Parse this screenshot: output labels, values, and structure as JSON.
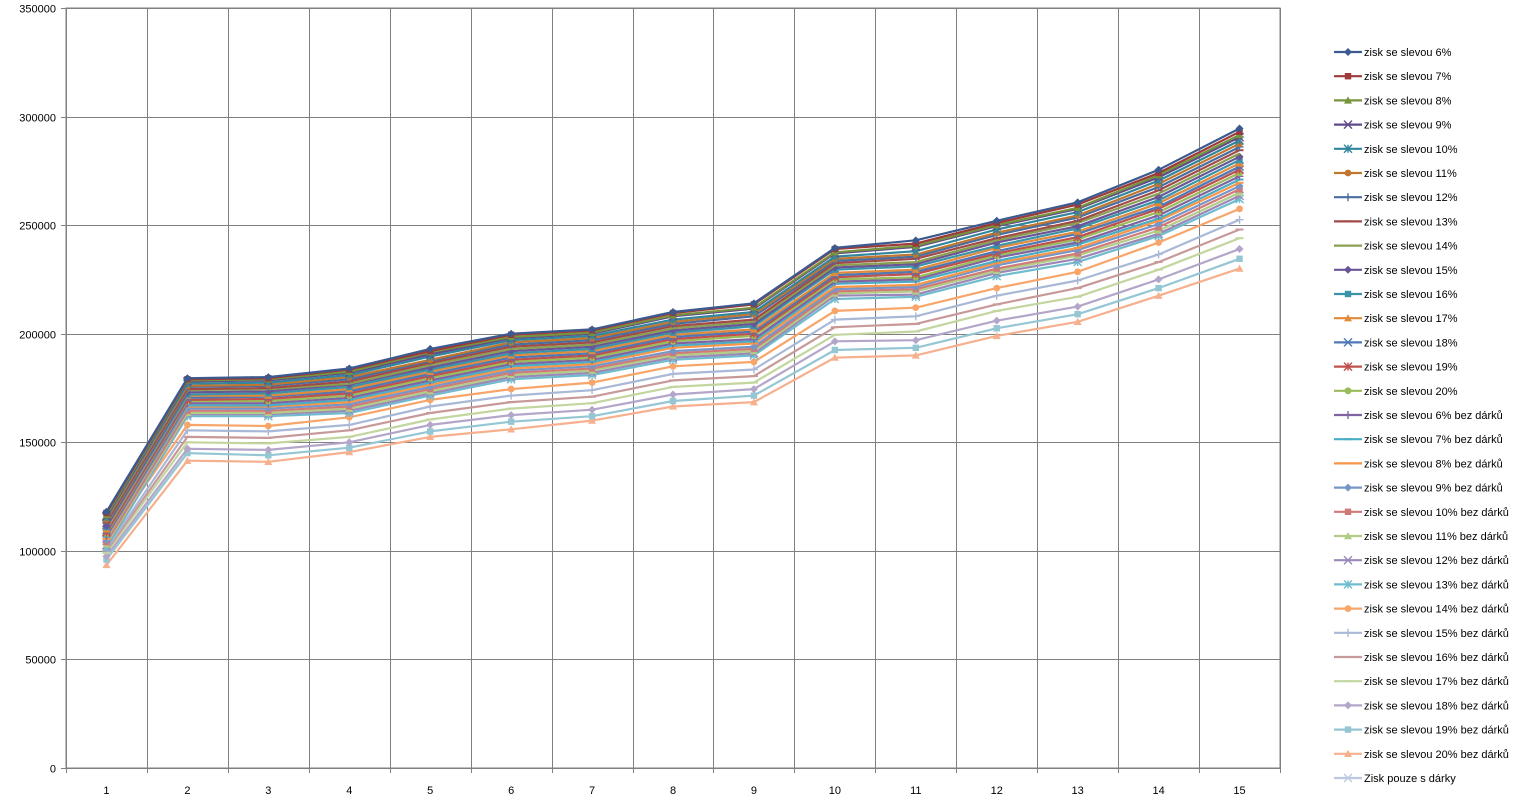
{
  "chart_data": {
    "type": "line",
    "title": "",
    "xlabel": "",
    "ylabel": "",
    "ylim": [
      0,
      350000
    ],
    "yticks": [
      0,
      50000,
      100000,
      150000,
      200000,
      250000,
      300000,
      350000
    ],
    "ytick_labels": [
      "0",
      "50000",
      "100000",
      "150000",
      "200000",
      "250000",
      "300000",
      "350000"
    ],
    "x": [
      "1",
      "2",
      "3",
      "4",
      "5",
      "6",
      "7",
      "8",
      "9",
      "10",
      "11",
      "12",
      "13",
      "14",
      "15"
    ],
    "grid": true,
    "legend_position": "right",
    "series": [
      {
        "name": "zisk se slevou 6%",
        "color": "#3b5a8f",
        "marker": "diamond",
        "values": [
          118000,
          179500,
          180000,
          184000,
          193000,
          200000,
          202000,
          210000,
          214000,
          239500,
          243000,
          252000,
          260500,
          275500,
          294500
        ]
      },
      {
        "name": "zisk se slevou 7%",
        "color": "#9c3b39",
        "marker": "square",
        "values": [
          117500,
          179000,
          179500,
          183500,
          192000,
          199500,
          201500,
          209500,
          213500,
          239000,
          241500,
          251000,
          259500,
          274000,
          293000
        ]
      },
      {
        "name": "zisk se slevou 8%",
        "color": "#77933c",
        "marker": "triangle",
        "values": [
          116500,
          178500,
          179000,
          182500,
          191500,
          198500,
          200500,
          208500,
          212000,
          237500,
          240500,
          250000,
          258000,
          273000,
          291500
        ]
      },
      {
        "name": "zisk se slevou 9%",
        "color": "#5f4b8b",
        "marker": "x",
        "values": [
          116000,
          178000,
          178500,
          182000,
          190500,
          198000,
          200000,
          208000,
          211500,
          237000,
          240000,
          249500,
          257500,
          272000,
          290500
        ]
      },
      {
        "name": "zisk se slevou 10%",
        "color": "#31859c",
        "marker": "star",
        "values": [
          115500,
          177000,
          177500,
          181000,
          189500,
          197000,
          199000,
          206500,
          210000,
          235500,
          238000,
          248000,
          256000,
          270500,
          289000
        ]
      },
      {
        "name": "zisk se slevou 11%",
        "color": "#c0762f",
        "marker": "circle",
        "values": [
          114500,
          176000,
          176500,
          180000,
          188000,
          196000,
          198000,
          205500,
          209000,
          234500,
          236500,
          246500,
          254500,
          269000,
          287500
        ]
      },
      {
        "name": "zisk se slevou 12%",
        "color": "#4a6ea0",
        "marker": "plus",
        "values": [
          114000,
          175500,
          176000,
          179000,
          187500,
          195000,
          197000,
          204500,
          208000,
          233500,
          235500,
          245500,
          253500,
          267500,
          286000
        ]
      },
      {
        "name": "zisk se slevou 13%",
        "color": "#a24a48",
        "marker": "dash",
        "values": [
          113000,
          174500,
          175000,
          178000,
          186500,
          194000,
          196000,
          203500,
          206500,
          232500,
          234500,
          244000,
          252000,
          266000,
          284500
        ]
      },
      {
        "name": "zisk se slevou 14%",
        "color": "#8aa050",
        "marker": "none",
        "values": [
          112500,
          174000,
          174500,
          177000,
          185500,
          193000,
          195000,
          202500,
          205500,
          231500,
          233000,
          243000,
          251000,
          264500,
          283000
        ]
      },
      {
        "name": "zisk se slevou 15%",
        "color": "#6a5596",
        "marker": "diamond",
        "values": [
          111500,
          173000,
          173500,
          176500,
          184500,
          192000,
          194000,
          201500,
          204500,
          230500,
          232000,
          242000,
          249500,
          263000,
          281500
        ]
      },
      {
        "name": "zisk se slevou 16%",
        "color": "#3a93a8",
        "marker": "square",
        "values": [
          111000,
          172000,
          172500,
          175500,
          183500,
          191000,
          193000,
          200500,
          203500,
          229500,
          231000,
          240500,
          248500,
          261500,
          280000
        ]
      },
      {
        "name": "zisk se slevou 17%",
        "color": "#e08a3c",
        "marker": "triangle",
        "values": [
          110000,
          171500,
          171500,
          174500,
          182500,
          190000,
          192000,
          199500,
          202000,
          228000,
          229500,
          239500,
          247000,
          260000,
          278500
        ]
      },
      {
        "name": "zisk se slevou 18%",
        "color": "#4f78b4",
        "marker": "x",
        "values": [
          109500,
          170500,
          171000,
          173500,
          181500,
          189000,
          191000,
          198500,
          201000,
          227000,
          228500,
          238000,
          246000,
          258500,
          277000
        ]
      },
      {
        "name": "zisk se slevou 19%",
        "color": "#c0504d",
        "marker": "star",
        "values": [
          108500,
          169500,
          170000,
          172500,
          180500,
          188000,
          190000,
          197500,
          200000,
          226000,
          227500,
          237000,
          244500,
          257500,
          275500
        ]
      },
      {
        "name": "zisk se slevou 20%",
        "color": "#9bbb59",
        "marker": "circle",
        "values": [
          108000,
          169000,
          169000,
          171500,
          179500,
          187000,
          189000,
          196500,
          199000,
          225000,
          226000,
          236000,
          243500,
          256000,
          274000
        ]
      },
      {
        "name": "zisk se slevou 6% bez dárků",
        "color": "#8064a2",
        "marker": "plus",
        "values": [
          107000,
          168000,
          168000,
          170500,
          178500,
          186000,
          188000,
          195500,
          197500,
          224000,
          225000,
          235000,
          242000,
          254500,
          272500
        ]
      },
      {
        "name": "zisk se slevou 7% bez dárků",
        "color": "#4bacc6",
        "marker": "dash",
        "values": [
          106500,
          167000,
          167000,
          169500,
          177500,
          185000,
          187000,
          194500,
          196500,
          223000,
          224000,
          233500,
          241000,
          253000,
          271000
        ]
      },
      {
        "name": "zisk se slevou 8% bez dárků",
        "color": "#f79646",
        "marker": "dash",
        "values": [
          105500,
          166500,
          166500,
          168500,
          176500,
          184000,
          186000,
          193500,
          195500,
          221500,
          222500,
          232500,
          239500,
          252000,
          269500
        ]
      },
      {
        "name": "zisk se slevou 9% bez dárků",
        "color": "#7796c8",
        "marker": "diamond",
        "values": [
          105000,
          165500,
          165500,
          167500,
          175500,
          183000,
          185000,
          192000,
          194000,
          220500,
          221500,
          231500,
          238500,
          250500,
          268000
        ]
      },
      {
        "name": "zisk se slevou 10% bez dárků",
        "color": "#d07a78",
        "marker": "square",
        "values": [
          104000,
          164500,
          164500,
          166500,
          174500,
          182000,
          184000,
          191000,
          193000,
          219500,
          220500,
          230000,
          237000,
          249000,
          266500
        ]
      },
      {
        "name": "zisk se slevou 11% bez dárků",
        "color": "#b3cc85",
        "marker": "triangle",
        "values": [
          103000,
          163500,
          163500,
          165500,
          173500,
          181000,
          183000,
          190000,
          192000,
          218500,
          219500,
          229000,
          236000,
          247500,
          265000
        ]
      },
      {
        "name": "zisk se slevou 12% bez dárků",
        "color": "#9b88b8",
        "marker": "x",
        "values": [
          102500,
          163000,
          163000,
          164500,
          172500,
          180000,
          182000,
          189000,
          191000,
          217500,
          218000,
          228000,
          234500,
          246000,
          263500
        ]
      },
      {
        "name": "zisk se slevou 13% bez dárků",
        "color": "#70bccf",
        "marker": "star",
        "values": [
          101500,
          162000,
          162000,
          163500,
          171500,
          179000,
          181000,
          188000,
          190000,
          216000,
          217000,
          226500,
          233000,
          245000,
          262000
        ]
      },
      {
        "name": "zisk se slevou 14% bez dárků",
        "color": "#f8a56a",
        "marker": "circle",
        "values": [
          104500,
          158000,
          157500,
          161500,
          169500,
          174500,
          177500,
          185000,
          187000,
          210500,
          212000,
          221000,
          228500,
          242000,
          257500
        ]
      },
      {
        "name": "zisk se slevou 15% bez dárků",
        "color": "#a9b8d6",
        "marker": "plus",
        "values": [
          101000,
          155500,
          155000,
          158000,
          166500,
          171500,
          174000,
          181500,
          183500,
          206500,
          208000,
          217500,
          224500,
          236500,
          252500
        ]
      },
      {
        "name": "zisk se slevou 16% bez dárků",
        "color": "#c89999",
        "marker": "dash",
        "values": [
          100000,
          152500,
          152000,
          155500,
          163500,
          168500,
          171000,
          178500,
          180500,
          203000,
          204500,
          213500,
          221000,
          233000,
          248000
        ]
      },
      {
        "name": "zisk se slevou 17% bez dárků",
        "color": "#c3d6a0",
        "marker": "dash",
        "values": [
          99000,
          150000,
          149500,
          152500,
          160500,
          165500,
          168000,
          175500,
          177500,
          199500,
          201000,
          210500,
          217000,
          229500,
          244000
        ]
      },
      {
        "name": "zisk se slevou 18% bez dárků",
        "color": "#b3a6c9",
        "marker": "diamond",
        "values": [
          97500,
          147000,
          146500,
          150000,
          158000,
          162500,
          165000,
          172000,
          174500,
          196500,
          197000,
          206000,
          212500,
          225000,
          239000
        ]
      },
      {
        "name": "zisk se slevou 19% bez dárků",
        "color": "#95c6d4",
        "marker": "square",
        "values": [
          96000,
          145000,
          144000,
          147500,
          155000,
          159500,
          162000,
          169000,
          171500,
          192500,
          193500,
          202500,
          209000,
          221000,
          234500
        ]
      },
      {
        "name": "zisk se slevou 20% bez dárků",
        "color": "#f6b08e",
        "marker": "triangle",
        "values": [
          93500,
          141500,
          141000,
          145500,
          152500,
          156000,
          160000,
          166500,
          168500,
          189000,
          190000,
          199000,
          205500,
          217500,
          230000
        ]
      },
      {
        "name": "Zisk pouze s dárky",
        "color": "#bcc8e0",
        "marker": "x",
        "values": [
          111000,
          167500,
          167500,
          174500,
          181500,
          185500,
          190000,
          199500,
          203500,
          226000,
          229000,
          236000,
          243000,
          261000,
          276000
        ]
      }
    ]
  }
}
